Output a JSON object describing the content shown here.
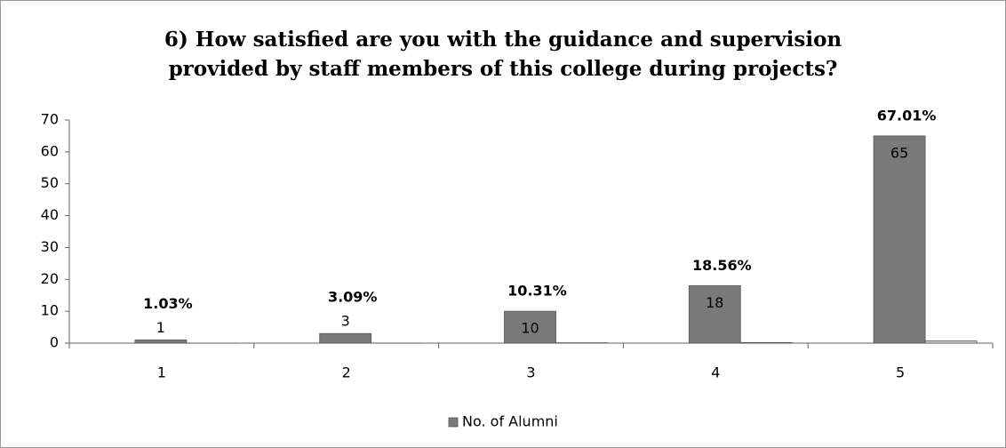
{
  "chart_data": {
    "type": "bar",
    "title": [
      "6) How satisfied are you with the guidance and supervision",
      "provided by staff members of this college during projects?"
    ],
    "categories": [
      "1",
      "2",
      "3",
      "4",
      "5"
    ],
    "series": [
      {
        "name": "No. of Alumni",
        "color": "#7a7a7a",
        "values": [
          1,
          3,
          10,
          18,
          65
        ]
      },
      {
        "color": "#d0d0d0",
        "values": [
          0.0103,
          0.0309,
          0.1031,
          0.1856,
          0.6701
        ],
        "value_labels": [
          "1.03%",
          "3.09%",
          "10.31%",
          "18.56%",
          "67.01%"
        ]
      }
    ],
    "ylim": [
      0,
      70
    ],
    "yticks": [
      0,
      10,
      20,
      30,
      40,
      50,
      60,
      70
    ],
    "grid": false,
    "legend": "bottom"
  }
}
